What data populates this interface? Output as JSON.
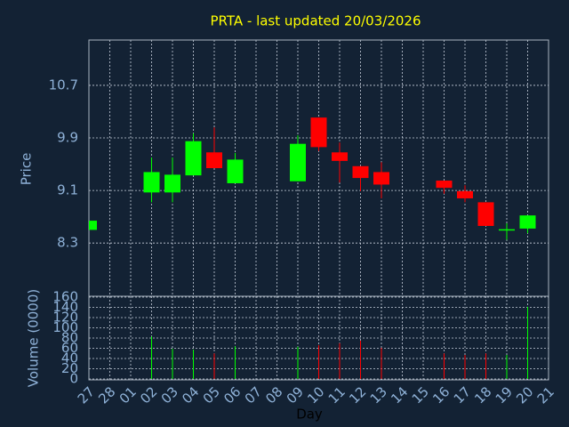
{
  "chart_data": {
    "type": "candlestick",
    "title": "PRTA - last updated 20/03/2026",
    "x_label": "Day",
    "y_label": "Price",
    "y2_label": "Volume (0000)",
    "categories": [
      "27",
      "28",
      "01",
      "02",
      "03",
      "04",
      "05",
      "06",
      "07",
      "08",
      "09",
      "10",
      "11",
      "12",
      "13",
      "14",
      "15",
      "16",
      "17",
      "18",
      "19",
      "20",
      "21"
    ],
    "open": [
      8.5,
      null,
      null,
      9.07,
      9.07,
      9.33,
      9.68,
      9.21,
      null,
      null,
      9.24,
      10.21,
      9.68,
      9.47,
      9.38,
      null,
      null,
      9.25,
      9.09,
      8.92,
      8.5,
      8.52,
      null
    ],
    "high": [
      8.64,
      null,
      null,
      9.6,
      9.6,
      9.97,
      10.06,
      9.67,
      null,
      null,
      9.94,
      10.21,
      9.83,
      9.47,
      9.53,
      null,
      null,
      9.25,
      9.18,
      8.92,
      8.6,
      8.72,
      null
    ],
    "low": [
      8.5,
      null,
      null,
      8.92,
      8.92,
      9.33,
      9.44,
      9.21,
      null,
      null,
      9.24,
      9.7,
      9.22,
      9.09,
      8.98,
      null,
      null,
      9.05,
      8.92,
      8.56,
      8.35,
      8.45,
      null
    ],
    "close": [
      8.64,
      null,
      null,
      9.38,
      9.34,
      9.85,
      9.44,
      9.57,
      null,
      null,
      9.81,
      9.76,
      9.55,
      9.29,
      9.19,
      null,
      null,
      9.14,
      8.98,
      8.56,
      8.51,
      8.72,
      null
    ],
    "volume": [
      null,
      null,
      null,
      83,
      59,
      57,
      50,
      64,
      null,
      null,
      63,
      66,
      70,
      75,
      61,
      null,
      null,
      50,
      47,
      50,
      47,
      141,
      null
    ],
    "up_color": "#00ff00",
    "down_color": "#ff0000",
    "title_color": "#ffff00",
    "ylim": [
      7.49,
      11.39
    ],
    "yticks": [
      8.3,
      9.1,
      9.9,
      10.7
    ],
    "y2lim": [
      0,
      160
    ],
    "y2ticks": [
      0,
      20,
      40,
      60,
      80,
      100,
      120,
      140,
      160
    ],
    "grid": true
  }
}
